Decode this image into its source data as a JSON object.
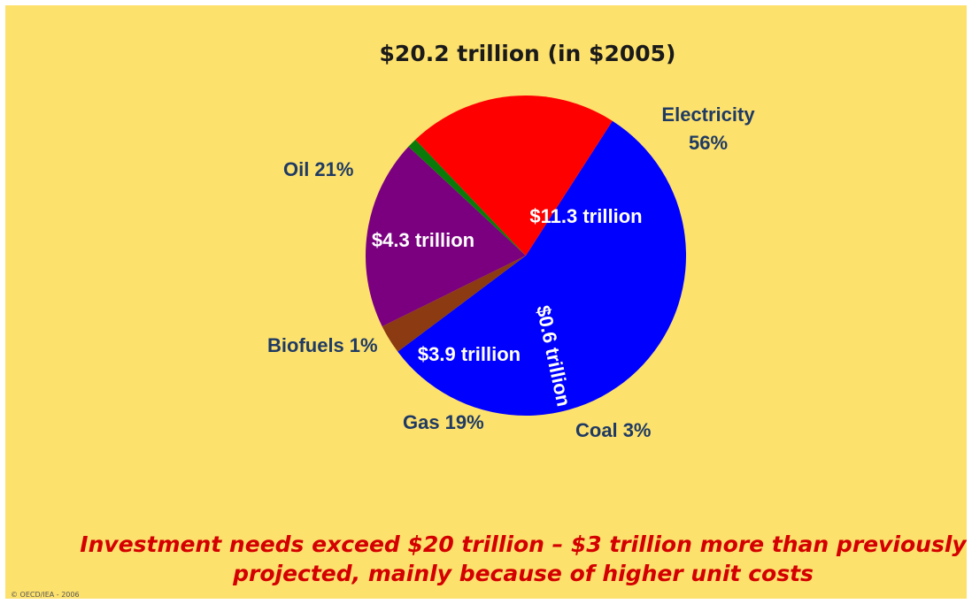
{
  "slide": {
    "title": "$20.2 trillion (in $2005)",
    "caption_line1": "Investment needs exceed $20 trillion – $3 trillion more than previously",
    "caption_line2": "projected, mainly because of higher unit costs",
    "copyright": "© OECD/IEA - 2006",
    "background_color": "#fde16d"
  },
  "chart_data": {
    "type": "pie",
    "title": "$20.2 trillion (in $2005)",
    "slices": [
      {
        "key": "electricity",
        "name": "Electricity",
        "share_label": "56%",
        "value_label": "$11.3 trillion",
        "value": 11.3,
        "percent": 56,
        "color": "#0000ff"
      },
      {
        "key": "coal",
        "name": "Coal",
        "share_label": "3%",
        "value_label": "$0.6 trillion",
        "value": 0.6,
        "percent": 3,
        "color": "#8b3a12"
      },
      {
        "key": "gas",
        "name": "Gas",
        "share_label": "19%",
        "value_label": "$3.9 trillion",
        "value": 3.9,
        "percent": 19,
        "color": "#7a0080"
      },
      {
        "key": "biofuels",
        "name": "Biofuels",
        "share_label": "1%",
        "value_label": "",
        "value": 0.2,
        "percent": 1,
        "color": "#0a7a0a"
      },
      {
        "key": "oil",
        "name": "Oil",
        "share_label": "21%",
        "value_label": "$4.3 trillion",
        "value": 4.3,
        "percent": 21,
        "color": "#ff0000"
      }
    ]
  }
}
